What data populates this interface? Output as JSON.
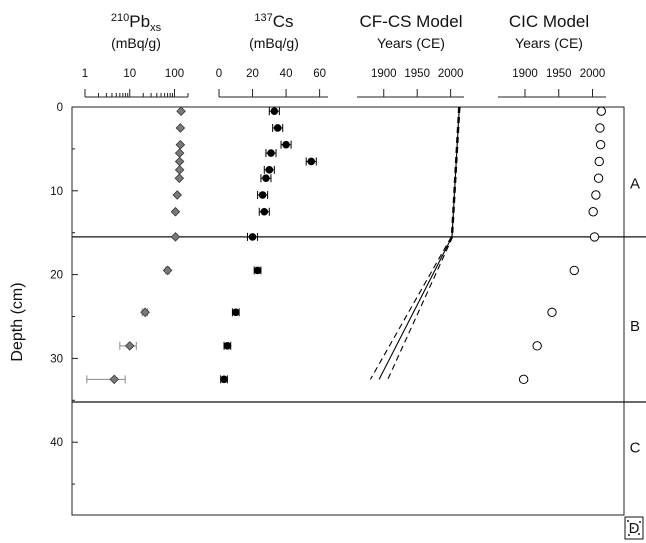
{
  "chart_data": {
    "type": "scatter",
    "ylabel": "Depth (cm)",
    "depth_axis": {
      "ticks": [
        0,
        10,
        20,
        30,
        40
      ],
      "range": [
        0,
        49
      ]
    },
    "zone_boundaries_cm": [
      15.5,
      35.2
    ],
    "zones": [
      {
        "label": "A",
        "depth_cm": 9
      },
      {
        "label": "B",
        "depth_cm": 26
      },
      {
        "label": "C",
        "depth_cm": 40.5
      },
      {
        "label": "D",
        "depth_cm": 50.5
      }
    ],
    "panels": [
      {
        "id": "pb",
        "title_sup": "210",
        "title_main": "Pb",
        "title_sub": "xs",
        "unit": "(mBq/g)",
        "scale": "log",
        "xlim": [
          1,
          200
        ],
        "ticks": [
          1,
          10,
          100
        ],
        "tick_labels": [
          "1",
          "10",
          "100"
        ],
        "marker": "diamond",
        "color": "#7a7a7a",
        "points": [
          {
            "depth": 0.5,
            "value": 140
          },
          {
            "depth": 2.5,
            "value": 135
          },
          {
            "depth": 4.5,
            "value": 135
          },
          {
            "depth": 5.5,
            "value": 130
          },
          {
            "depth": 6.5,
            "value": 130
          },
          {
            "depth": 7.5,
            "value": 130
          },
          {
            "depth": 8.5,
            "value": 128
          },
          {
            "depth": 10.5,
            "value": 115
          },
          {
            "depth": 12.5,
            "value": 105
          },
          {
            "depth": 15.5,
            "value": 105
          },
          {
            "depth": 19.5,
            "value": 70,
            "err": 6
          },
          {
            "depth": 24.5,
            "value": 22,
            "err": 3
          },
          {
            "depth": 28.5,
            "value": 10,
            "err": 4
          },
          {
            "depth": 32.5,
            "value": 4.5,
            "err": 3.4
          }
        ]
      },
      {
        "id": "cs",
        "title_sup": "137",
        "title_main": "Cs",
        "title_sub": "",
        "unit": "(mBq/g)",
        "scale": "linear",
        "xlim": [
          0,
          65
        ],
        "ticks": [
          0,
          20,
          40,
          60
        ],
        "tick_labels": [
          "0",
          "20",
          "40",
          "60"
        ],
        "marker": "circle",
        "color": "#000000",
        "points": [
          {
            "depth": 0.5,
            "value": 33,
            "err": 3
          },
          {
            "depth": 2.5,
            "value": 35,
            "err": 3
          },
          {
            "depth": 4.5,
            "value": 40,
            "err": 3
          },
          {
            "depth": 5.5,
            "value": 31,
            "err": 3
          },
          {
            "depth": 6.5,
            "value": 55,
            "err": 3
          },
          {
            "depth": 7.5,
            "value": 30,
            "err": 3
          },
          {
            "depth": 8.5,
            "value": 28,
            "err": 3
          },
          {
            "depth": 10.5,
            "value": 26,
            "err": 3
          },
          {
            "depth": 12.5,
            "value": 27,
            "err": 3
          },
          {
            "depth": 15.5,
            "value": 20,
            "err": 3
          },
          {
            "depth": 19.5,
            "value": 23,
            "err": 2
          },
          {
            "depth": 24.5,
            "value": 10,
            "err": 2
          },
          {
            "depth": 28.5,
            "value": 5,
            "err": 2
          },
          {
            "depth": 32.5,
            "value": 3,
            "err": 2
          }
        ]
      },
      {
        "id": "cfcs",
        "title_main": "CF-CS Model",
        "unit": "Years (CE)",
        "scale": "linear",
        "xlim": [
          1860,
          2020
        ],
        "ticks": [
          1900,
          1950,
          2000
        ],
        "tick_labels": [
          "1900",
          "1950",
          "2000"
        ],
        "model_line": [
          {
            "depth": 0,
            "year": 2013
          },
          {
            "depth": 15.5,
            "year": 2002
          },
          {
            "depth": 32.5,
            "year": 1893
          }
        ],
        "upper_bound": [
          {
            "depth": 0,
            "year": 2014
          },
          {
            "depth": 15.5,
            "year": 2003
          },
          {
            "depth": 32.5,
            "year": 1906
          }
        ],
        "lower_bound": [
          {
            "depth": 0,
            "year": 2012
          },
          {
            "depth": 15.5,
            "year": 2001
          },
          {
            "depth": 32.5,
            "year": 1880
          }
        ]
      },
      {
        "id": "cic",
        "title_main": "CIC Model",
        "unit": "Years (CE)",
        "scale": "linear",
        "xlim": [
          1860,
          2020
        ],
        "ticks": [
          1900,
          1950,
          2000
        ],
        "tick_labels": [
          "1900",
          "1950",
          "2000"
        ],
        "marker": "open-circle",
        "points": [
          {
            "depth": 0.5,
            "year": 2013
          },
          {
            "depth": 2.5,
            "year": 2011
          },
          {
            "depth": 4.5,
            "year": 2012
          },
          {
            "depth": 6.5,
            "year": 2010
          },
          {
            "depth": 8.5,
            "year": 2009
          },
          {
            "depth": 10.5,
            "year": 2005
          },
          {
            "depth": 12.5,
            "year": 2001
          },
          {
            "depth": 15.5,
            "year": 2003
          },
          {
            "depth": 19.5,
            "year": 1973
          },
          {
            "depth": 24.5,
            "year": 1940
          },
          {
            "depth": 28.5,
            "year": 1918
          },
          {
            "depth": 32.5,
            "year": 1898
          }
        ]
      }
    ]
  }
}
